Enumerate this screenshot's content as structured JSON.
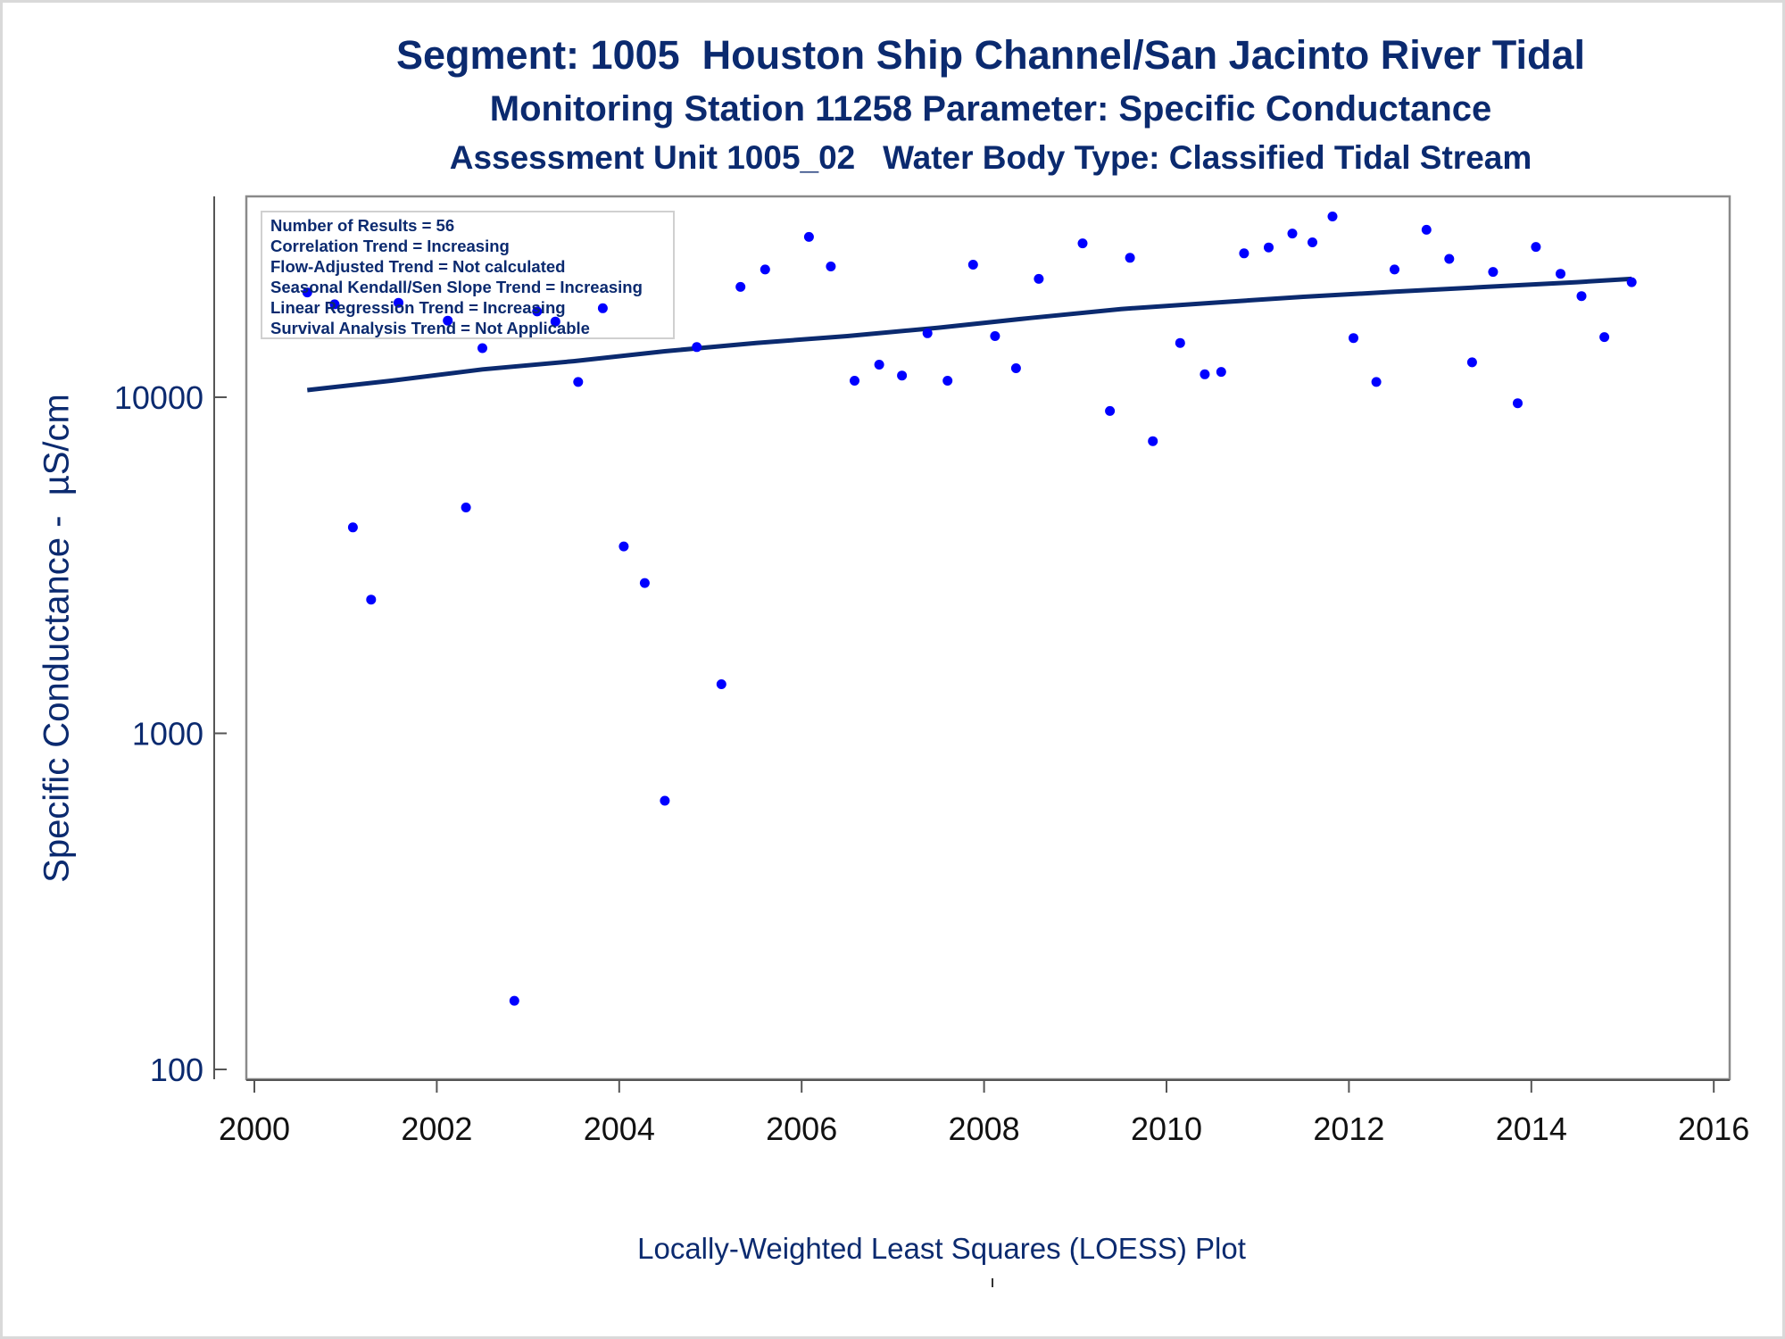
{
  "titles": {
    "line1": "Segment: 1005  Houston Ship Channel/San Jacinto River Tidal",
    "line2": "Monitoring Station 11258 Parameter: Specific Conductance",
    "line3": "Assessment Unit 1005_02   Water Body Type: Classified Tidal Stream"
  },
  "caption": "Locally-Weighted Least Squares (LOESS) Plot",
  "legend": [
    "Number of Results = 56",
    "Correlation Trend = Increasing",
    "Flow-Adjusted Trend = Not calculated",
    "Seasonal Kendall/Sen Slope Trend = Increasing",
    "Linear Regression Trend = Increasing",
    "Survival Analysis Trend = Not Applicable"
  ],
  "colors": {
    "points": "#0000ff",
    "loess": "#0b2a6f",
    "text": "#0b2a6f"
  },
  "chart_data": {
    "type": "scatter",
    "ylabel": "Specific Conductance -  µS/cm",
    "xlabel": "",
    "yscale": "log",
    "xlim": [
      2000,
      2016
    ],
    "ylim": [
      100,
      40000
    ],
    "xticks": [
      2000,
      2002,
      2004,
      2006,
      2008,
      2010,
      2012,
      2014,
      2016
    ],
    "yticks": [
      100,
      1000,
      10000
    ],
    "points": [
      [
        2000.58,
        20500
      ],
      [
        2000.88,
        18900
      ],
      [
        2001.08,
        4100
      ],
      [
        2001.28,
        2500
      ],
      [
        2001.58,
        19100
      ],
      [
        2002.12,
        16900
      ],
      [
        2002.32,
        4700
      ],
      [
        2002.5,
        14000
      ],
      [
        2002.85,
        160
      ],
      [
        2003.1,
        18000
      ],
      [
        2003.3,
        16800
      ],
      [
        2003.55,
        11100
      ],
      [
        2003.82,
        18400
      ],
      [
        2004.05,
        3600
      ],
      [
        2004.28,
        2800
      ],
      [
        2004.5,
        630
      ],
      [
        2004.85,
        14100
      ],
      [
        2005.12,
        1400
      ],
      [
        2005.33,
        21300
      ],
      [
        2005.6,
        24000
      ],
      [
        2006.08,
        30000
      ],
      [
        2006.32,
        24500
      ],
      [
        2006.58,
        11200
      ],
      [
        2006.85,
        12500
      ],
      [
        2007.1,
        11600
      ],
      [
        2007.38,
        15500
      ],
      [
        2007.6,
        11200
      ],
      [
        2007.88,
        24800
      ],
      [
        2008.12,
        15200
      ],
      [
        2008.35,
        12200
      ],
      [
        2008.6,
        22500
      ],
      [
        2009.08,
        28700
      ],
      [
        2009.38,
        9100
      ],
      [
        2009.6,
        26000
      ],
      [
        2009.85,
        7400
      ],
      [
        2010.15,
        14500
      ],
      [
        2010.42,
        11700
      ],
      [
        2010.6,
        11900
      ],
      [
        2010.85,
        26800
      ],
      [
        2011.12,
        27900
      ],
      [
        2011.38,
        30700
      ],
      [
        2011.6,
        28900
      ],
      [
        2011.82,
        34500
      ],
      [
        2012.05,
        15000
      ],
      [
        2012.3,
        11100
      ],
      [
        2012.5,
        24000
      ],
      [
        2012.85,
        31500
      ],
      [
        2013.1,
        25800
      ],
      [
        2013.35,
        12700
      ],
      [
        2013.58,
        23600
      ],
      [
        2013.85,
        9600
      ],
      [
        2014.05,
        28000
      ],
      [
        2014.32,
        23300
      ],
      [
        2014.55,
        20000
      ],
      [
        2014.8,
        15100
      ],
      [
        2015.1,
        22000
      ]
    ],
    "loess": [
      [
        2000.58,
        10500
      ],
      [
        2001.5,
        11200
      ],
      [
        2002.5,
        12100
      ],
      [
        2003.5,
        12800
      ],
      [
        2004.5,
        13700
      ],
      [
        2005.5,
        14500
      ],
      [
        2006.5,
        15200
      ],
      [
        2007.5,
        16100
      ],
      [
        2008.5,
        17200
      ],
      [
        2009.5,
        18300
      ],
      [
        2010.5,
        19100
      ],
      [
        2011.5,
        19900
      ],
      [
        2012.5,
        20600
      ],
      [
        2013.5,
        21300
      ],
      [
        2014.5,
        22000
      ],
      [
        2015.1,
        22500
      ]
    ]
  }
}
